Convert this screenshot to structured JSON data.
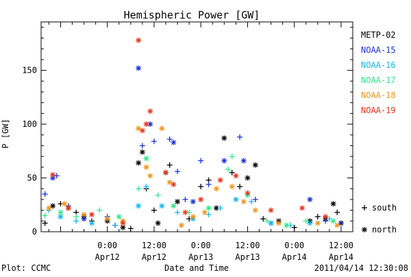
{
  "chart_data": {
    "type": "scatter",
    "title": "Hemispheric Power [GW]",
    "xlabel": "Date and Time",
    "ylabel": "P [GW]",
    "ylim": [
      0,
      195
    ],
    "xlim": [
      "2011-04-11 07:00",
      "2011-04-14 15:00"
    ],
    "y_ticks": [
      0,
      50,
      100,
      150
    ],
    "x_ticks": [
      {
        "label1": "0:00",
        "label2": "Apr12",
        "x": "2011-04-12 00:00"
      },
      {
        "label1": "12:00",
        "label2": "Apr12",
        "x": "2011-04-12 12:00"
      },
      {
        "label1": "0:00",
        "label2": "Apr13",
        "x": "2011-04-13 00:00"
      },
      {
        "label1": "12:00",
        "label2": "Apr13",
        "x": "2011-04-13 12:00"
      },
      {
        "label1": "0:00",
        "label2": "Apr14",
        "x": "2011-04-14 00:00"
      },
      {
        "label1": "12:00",
        "label2": "Apr14",
        "x": "2011-04-14 12:00"
      }
    ],
    "legend_placement": "right",
    "marker_legend": [
      {
        "symbol": "+",
        "label": "south"
      },
      {
        "symbol": "*",
        "label": "north"
      }
    ],
    "series": [
      {
        "name": "METP-02",
        "color": "#000000",
        "points": [
          [
            "2011-04-11 08:00",
            8,
            "+"
          ],
          [
            "2011-04-11 10:00",
            24,
            "*"
          ],
          [
            "2011-04-11 12:00",
            26,
            "+"
          ],
          [
            "2011-04-11 14:00",
            22,
            "*"
          ],
          [
            "2011-04-11 16:00",
            18,
            "+"
          ],
          [
            "2011-04-11 18:00",
            14,
            "*"
          ],
          [
            "2011-04-11 20:00",
            10,
            "+"
          ],
          [
            "2011-04-12 00:00",
            10,
            "*"
          ],
          [
            "2011-04-12 02:00",
            6,
            "+"
          ],
          [
            "2011-04-12 04:00",
            4,
            "*"
          ],
          [
            "2011-04-12 06:00",
            3,
            "+"
          ],
          [
            "2011-04-12 08:00",
            64,
            "*"
          ],
          [
            "2011-04-12 09:00",
            74,
            "*"
          ],
          [
            "2011-04-12 10:00",
            40,
            "+"
          ],
          [
            "2011-04-12 12:00",
            20,
            "+"
          ],
          [
            "2011-04-12 13:00",
            8,
            "*"
          ],
          [
            "2011-04-12 15:00",
            55,
            "*"
          ],
          [
            "2011-04-12 16:00",
            62,
            "+"
          ],
          [
            "2011-04-12 18:00",
            28,
            "*"
          ],
          [
            "2011-04-12 21:00",
            12,
            "+"
          ],
          [
            "2011-04-13 00:00",
            42,
            "+"
          ],
          [
            "2011-04-13 02:00",
            48,
            "+"
          ],
          [
            "2011-04-13 04:00",
            22,
            "*"
          ],
          [
            "2011-04-13 06:00",
            87,
            "*"
          ],
          [
            "2011-04-13 08:00",
            55,
            "+"
          ],
          [
            "2011-04-13 10:00",
            42,
            "+"
          ],
          [
            "2011-04-13 12:00",
            50,
            "*"
          ],
          [
            "2011-04-13 14:00",
            62,
            "*"
          ],
          [
            "2011-04-13 16:00",
            12,
            "+"
          ],
          [
            "2011-04-13 20:00",
            10,
            "*"
          ],
          [
            "2011-04-14 00:00",
            4,
            "+"
          ],
          [
            "2011-04-14 04:00",
            10,
            "*"
          ],
          [
            "2011-04-14 06:00",
            14,
            "+"
          ],
          [
            "2011-04-14 08:00",
            12,
            "*"
          ],
          [
            "2011-04-14 10:00",
            26,
            "*"
          ],
          [
            "2011-04-14 11:00",
            18,
            "+"
          ],
          [
            "2011-04-14 12:00",
            8,
            "*"
          ]
        ]
      },
      {
        "name": "NOAA-15",
        "color": "#1a2fd8",
        "points": [
          [
            "2011-04-11 08:00",
            35,
            "+"
          ],
          [
            "2011-04-11 10:00",
            50,
            "*"
          ],
          [
            "2011-04-11 11:00",
            52,
            "+"
          ],
          [
            "2011-04-11 14:00",
            24,
            "+"
          ],
          [
            "2011-04-11 18:00",
            12,
            "*"
          ],
          [
            "2011-04-12 00:00",
            14,
            "+"
          ],
          [
            "2011-04-12 08:00",
            152,
            "*"
          ],
          [
            "2011-04-12 09:00",
            80,
            "+"
          ],
          [
            "2011-04-12 11:00",
            100,
            "*"
          ],
          [
            "2011-04-12 12:00",
            84,
            "+"
          ],
          [
            "2011-04-12 16:00",
            86,
            "+"
          ],
          [
            "2011-04-12 17:00",
            83,
            "*"
          ],
          [
            "2011-04-12 18:00",
            56,
            "+"
          ],
          [
            "2011-04-12 20:00",
            30,
            "+"
          ],
          [
            "2011-04-12 22:00",
            28,
            "*"
          ],
          [
            "2011-04-13 00:00",
            66,
            "+"
          ],
          [
            "2011-04-13 02:00",
            44,
            "+"
          ],
          [
            "2011-04-13 06:00",
            66,
            "*"
          ],
          [
            "2011-04-13 10:00",
            88,
            "+"
          ],
          [
            "2011-04-13 11:00",
            66,
            "*"
          ],
          [
            "2011-04-13 14:00",
            30,
            "+"
          ],
          [
            "2011-04-13 18:00",
            8,
            "*"
          ],
          [
            "2011-04-14 04:00",
            30,
            "*"
          ],
          [
            "2011-04-14 08:00",
            10,
            "+"
          ],
          [
            "2011-04-14 12:00",
            8,
            "+"
          ]
        ]
      },
      {
        "name": "NOAA-16",
        "color": "#17b6ec",
        "points": [
          [
            "2011-04-11 09:00",
            20,
            "+"
          ],
          [
            "2011-04-11 12:00",
            14,
            "*"
          ],
          [
            "2011-04-11 16:00",
            10,
            "+"
          ],
          [
            "2011-04-11 20:00",
            8,
            "*"
          ],
          [
            "2011-04-12 02:00",
            6,
            "+"
          ],
          [
            "2011-04-12 08:00",
            24,
            "*"
          ],
          [
            "2011-04-12 10:00",
            42,
            "+"
          ],
          [
            "2011-04-12 14:00",
            24,
            "*"
          ],
          [
            "2011-04-12 18:00",
            18,
            "+"
          ],
          [
            "2011-04-12 22:00",
            12,
            "*"
          ],
          [
            "2011-04-13 02:00",
            16,
            "+"
          ],
          [
            "2011-04-13 05:00",
            22,
            "+"
          ],
          [
            "2011-04-13 09:00",
            30,
            "*"
          ],
          [
            "2011-04-13 13:00",
            28,
            "+"
          ],
          [
            "2011-04-13 18:00",
            8,
            "*"
          ],
          [
            "2011-04-13 23:00",
            6,
            "+"
          ],
          [
            "2011-04-14 04:00",
            8,
            "*"
          ],
          [
            "2011-04-14 09:00",
            12,
            "+"
          ]
        ]
      },
      {
        "name": "NOAA-17",
        "color": "#2ee88a",
        "points": [
          [
            "2011-04-11 08:00",
            15,
            "+"
          ],
          [
            "2011-04-11 12:00",
            18,
            "*"
          ],
          [
            "2011-04-11 16:00",
            14,
            "+"
          ],
          [
            "2011-04-11 22:00",
            20,
            "+"
          ],
          [
            "2011-04-12 03:00",
            14,
            "*"
          ],
          [
            "2011-04-12 08:00",
            40,
            "+"
          ],
          [
            "2011-04-12 10:00",
            68,
            "*"
          ],
          [
            "2011-04-12 13:00",
            34,
            "+"
          ],
          [
            "2011-04-12 17:00",
            24,
            "*"
          ],
          [
            "2011-04-12 21:00",
            18,
            "+"
          ],
          [
            "2011-04-13 02:00",
            22,
            "*"
          ],
          [
            "2011-04-13 07:00",
            58,
            "+"
          ],
          [
            "2011-04-13 08:00",
            70,
            "+"
          ],
          [
            "2011-04-13 12:00",
            34,
            "*"
          ],
          [
            "2011-04-13 17:00",
            10,
            "+"
          ],
          [
            "2011-04-13 22:00",
            6,
            "*"
          ],
          [
            "2011-04-14 03:00",
            10,
            "+"
          ],
          [
            "2011-04-14 10:00",
            10,
            "*"
          ]
        ]
      },
      {
        "name": "NOAA-18",
        "color": "#f0941a",
        "points": [
          [
            "2011-04-11 09:00",
            22,
            "*"
          ],
          [
            "2011-04-11 13:00",
            26,
            "*"
          ],
          [
            "2011-04-11 18:00",
            16,
            "*"
          ],
          [
            "2011-04-12 00:00",
            12,
            "*"
          ],
          [
            "2011-04-12 04:00",
            10,
            "*"
          ],
          [
            "2011-04-12 08:00",
            96,
            "*"
          ],
          [
            "2011-04-12 10:00",
            60,
            "*"
          ],
          [
            "2011-04-12 11:00",
            52,
            "*"
          ],
          [
            "2011-04-12 14:00",
            96,
            "*"
          ],
          [
            "2011-04-12 16:00",
            46,
            "*"
          ],
          [
            "2011-04-12 19:00",
            6,
            "*"
          ],
          [
            "2011-04-12 22:00",
            14,
            "*"
          ],
          [
            "2011-04-13 01:00",
            18,
            "*"
          ],
          [
            "2011-04-13 04:00",
            40,
            "*"
          ],
          [
            "2011-04-13 08:00",
            42,
            "*"
          ],
          [
            "2011-04-13 11:00",
            28,
            "*"
          ],
          [
            "2011-04-13 14:00",
            20,
            "*"
          ],
          [
            "2011-04-13 20:00",
            8,
            "*"
          ],
          [
            "2011-04-14 06:00",
            8,
            "*"
          ],
          [
            "2011-04-14 11:00",
            6,
            "*"
          ]
        ]
      },
      {
        "name": "NOAA-19",
        "color": "#e8321a",
        "points": [
          [
            "2011-04-11 10:00",
            53,
            "*"
          ],
          [
            "2011-04-11 14:00",
            22,
            "*"
          ],
          [
            "2011-04-11 20:00",
            16,
            "*"
          ],
          [
            "2011-04-12 04:00",
            8,
            "*"
          ],
          [
            "2011-04-12 08:00",
            178,
            "*"
          ],
          [
            "2011-04-12 09:00",
            94,
            "*"
          ],
          [
            "2011-04-12 10:00",
            100,
            "*"
          ],
          [
            "2011-04-12 11:00",
            112,
            "*"
          ],
          [
            "2011-04-12 15:00",
            55,
            "*"
          ],
          [
            "2011-04-12 17:00",
            44,
            "*"
          ],
          [
            "2011-04-12 20:00",
            18,
            "*"
          ],
          [
            "2011-04-13 00:00",
            30,
            "*"
          ],
          [
            "2011-04-13 05:00",
            48,
            "*"
          ],
          [
            "2011-04-13 09:00",
            52,
            "*"
          ],
          [
            "2011-04-13 12:00",
            36,
            "*"
          ],
          [
            "2011-04-13 18:00",
            20,
            "*"
          ],
          [
            "2011-04-14 02:00",
            22,
            "*"
          ],
          [
            "2011-04-14 08:00",
            14,
            "*"
          ]
        ]
      }
    ]
  },
  "footer": {
    "left": "Plot: CCMC",
    "right": "2011/04/14 12:30:08"
  }
}
